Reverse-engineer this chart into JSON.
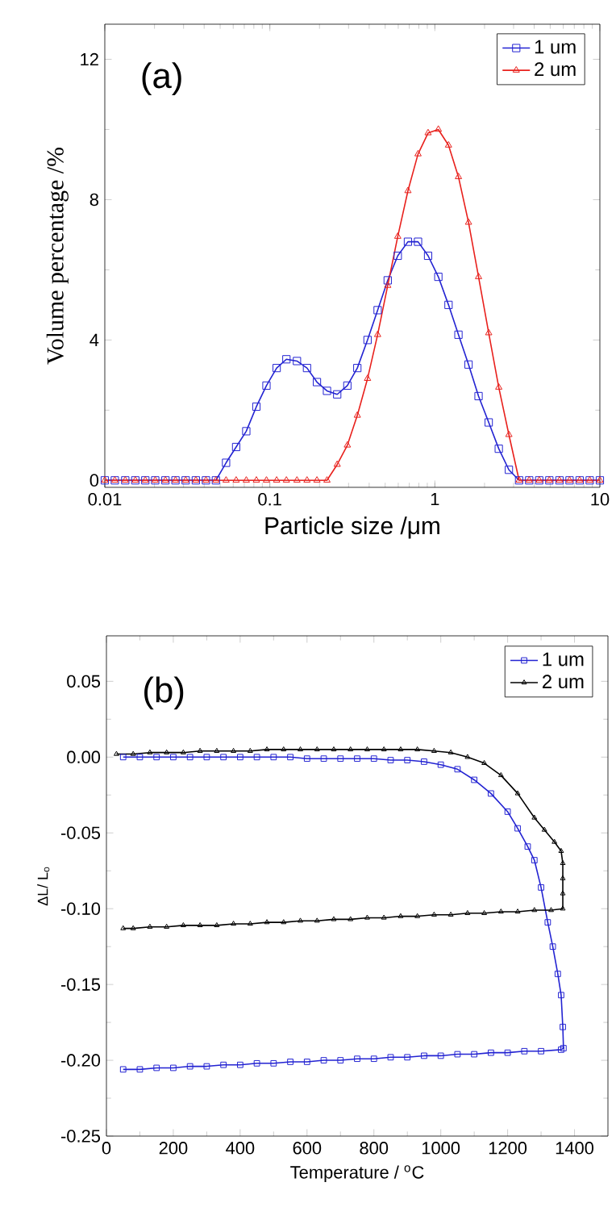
{
  "chart_data": [
    {
      "type": "line",
      "xlabel": "Particle size /μm",
      "ylabel": "Volume percentage /%",
      "annotations": [
        "(a)"
      ],
      "log": "x",
      "xlim": [
        0.01,
        10
      ],
      "ylim": [
        -0.2,
        13
      ],
      "xticks": [
        0.01,
        0.1,
        1,
        10
      ],
      "yticks": [
        0,
        4,
        8,
        12
      ],
      "legend": "top right",
      "x": [
        0.01,
        0.0115,
        0.0133,
        0.0153,
        0.0176,
        0.0202,
        0.0233,
        0.0268,
        0.0309,
        0.0356,
        0.041,
        0.0471,
        0.0543,
        0.0625,
        0.072,
        0.0829,
        0.0954,
        0.11,
        0.126,
        0.146,
        0.168,
        0.193,
        0.222,
        0.256,
        0.295,
        0.339,
        0.391,
        0.45,
        0.518,
        0.596,
        0.687,
        0.791,
        0.91,
        1.05,
        1.21,
        1.39,
        1.6,
        1.84,
        2.12,
        2.44,
        2.81,
        3.24,
        3.73,
        4.29,
        4.94,
        5.69,
        6.55,
        7.54,
        8.68,
        10.0
      ],
      "series": [
        {
          "name": "1 um",
          "color": "#2323d2",
          "marker": "square",
          "values": [
            0,
            0,
            0,
            0,
            0,
            0,
            0,
            0,
            0,
            0,
            0,
            0,
            0.5,
            0.95,
            1.4,
            2.1,
            2.7,
            3.2,
            3.45,
            3.4,
            3.2,
            2.8,
            2.55,
            2.45,
            2.7,
            3.2,
            4.0,
            4.85,
            5.7,
            6.4,
            6.8,
            6.8,
            6.4,
            5.8,
            5.0,
            4.15,
            3.3,
            2.4,
            1.65,
            0.9,
            0.3,
            0,
            0,
            0,
            0,
            0,
            0,
            0,
            0,
            0
          ]
        },
        {
          "name": "2 um",
          "color": "#e8201c",
          "marker": "triangle",
          "values": [
            0,
            0,
            0,
            0,
            0,
            0,
            0,
            0,
            0,
            0,
            0,
            0,
            0,
            0,
            0,
            0,
            0,
            0,
            0,
            0,
            0,
            0,
            0,
            0.45,
            1.0,
            1.85,
            2.9,
            4.15,
            5.55,
            6.95,
            8.25,
            9.3,
            9.9,
            10.0,
            9.55,
            8.65,
            7.35,
            5.8,
            4.2,
            2.65,
            1.3,
            0,
            0,
            0,
            0,
            0,
            0,
            0,
            0,
            0
          ]
        }
      ]
    },
    {
      "type": "line",
      "xlabel": "Temperature / $^{o}$C",
      "ylabel": "ΔL/ L$_{o}$",
      "annotations": [
        "(b)"
      ],
      "xlim": [
        0,
        1500
      ],
      "ylim": [
        -0.25,
        0.08
      ],
      "xticks": [
        0,
        200,
        400,
        600,
        800,
        1000,
        1200,
        1400
      ],
      "yticks": [
        {
          "value": -0.25,
          "label": "-0.25"
        },
        {
          "value": -0.2,
          "label": "-0.20"
        },
        {
          "value": -0.15,
          "label": "-0.15"
        },
        {
          "value": -0.1,
          "label": "-0.10"
        },
        {
          "value": -0.05,
          "label": "-0.05"
        },
        {
          "value": 0,
          "label": "0.00"
        },
        {
          "value": 0.05,
          "label": "0.05"
        }
      ],
      "legend": "top right",
      "series": [
        {
          "name": "1 um",
          "color": "#2323d2",
          "marker": "square",
          "x": [
            50,
            100,
            150,
            200,
            250,
            300,
            350,
            400,
            450,
            500,
            550,
            600,
            650,
            700,
            750,
            800,
            850,
            900,
            950,
            1000,
            1050,
            1100,
            1150,
            1200,
            1230,
            1260,
            1280,
            1300,
            1320,
            1335,
            1350,
            1360,
            1365,
            1367,
            1360,
            1300,
            1250,
            1200,
            1150,
            1100,
            1050,
            1000,
            950,
            900,
            850,
            800,
            750,
            700,
            650,
            600,
            550,
            500,
            450,
            400,
            350,
            300,
            250,
            200,
            150,
            100,
            50
          ],
          "values": [
            0,
            0,
            0,
            0,
            0,
            0,
            0,
            0,
            0,
            0,
            0,
            -0.001,
            -0.001,
            -0.001,
            -0.001,
            -0.001,
            -0.002,
            -0.002,
            -0.003,
            -0.005,
            -0.008,
            -0.015,
            -0.024,
            -0.036,
            -0.047,
            -0.059,
            -0.068,
            -0.086,
            -0.109,
            -0.125,
            -0.143,
            -0.157,
            -0.178,
            -0.192,
            -0.193,
            -0.194,
            -0.194,
            -0.195,
            -0.195,
            -0.196,
            -0.196,
            -0.197,
            -0.197,
            -0.198,
            -0.198,
            -0.199,
            -0.199,
            -0.2,
            -0.2,
            -0.201,
            -0.201,
            -0.202,
            -0.202,
            -0.203,
            -0.203,
            -0.204,
            -0.204,
            -0.205,
            -0.205,
            -0.206,
            -0.206
          ]
        },
        {
          "name": "2 um",
          "color": "#000000",
          "marker": "triangle",
          "x": [
            30,
            80,
            130,
            180,
            230,
            280,
            330,
            380,
            430,
            480,
            530,
            580,
            630,
            680,
            730,
            780,
            830,
            880,
            930,
            980,
            1030,
            1080,
            1130,
            1180,
            1230,
            1280,
            1310,
            1340,
            1360,
            1365,
            1365,
            1365,
            1365,
            1330,
            1280,
            1230,
            1180,
            1130,
            1080,
            1030,
            980,
            930,
            880,
            830,
            780,
            730,
            680,
            630,
            580,
            530,
            480,
            430,
            380,
            330,
            280,
            230,
            180,
            130,
            80,
            50
          ],
          "values": [
            0.002,
            0.002,
            0.003,
            0.003,
            0.003,
            0.004,
            0.004,
            0.004,
            0.004,
            0.005,
            0.005,
            0.005,
            0.005,
            0.005,
            0.005,
            0.005,
            0.005,
            0.005,
            0.005,
            0.004,
            0.003,
            0.0,
            -0.004,
            -0.012,
            -0.024,
            -0.04,
            -0.048,
            -0.056,
            -0.062,
            -0.07,
            -0.08,
            -0.09,
            -0.1,
            -0.101,
            -0.101,
            -0.102,
            -0.102,
            -0.103,
            -0.103,
            -0.104,
            -0.104,
            -0.105,
            -0.105,
            -0.106,
            -0.106,
            -0.107,
            -0.107,
            -0.108,
            -0.108,
            -0.109,
            -0.109,
            -0.11,
            -0.11,
            -0.111,
            -0.111,
            -0.111,
            -0.112,
            -0.112,
            -0.113,
            -0.113
          ]
        }
      ]
    }
  ]
}
